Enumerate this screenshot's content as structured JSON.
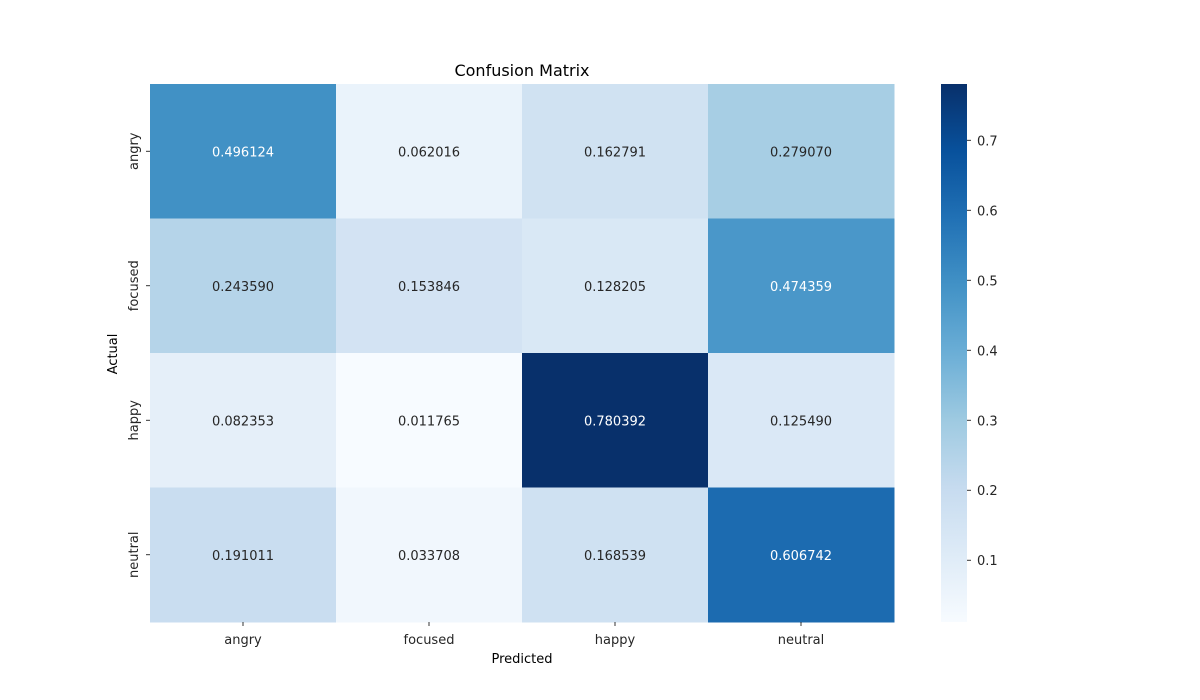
{
  "chart_data": {
    "type": "heatmap",
    "title": "Confusion Matrix",
    "xlabel": "Predicted",
    "ylabel": "Actual",
    "x_categories": [
      "angry",
      "focused",
      "happy",
      "neutral"
    ],
    "y_categories": [
      "angry",
      "focused",
      "happy",
      "neutral"
    ],
    "values": [
      [
        0.496124,
        0.062016,
        0.162791,
        0.27907
      ],
      [
        0.24359,
        0.153846,
        0.128205,
        0.474359
      ],
      [
        0.082353,
        0.011765,
        0.780392,
        0.12549
      ],
      [
        0.191011,
        0.033708,
        0.168539,
        0.606742
      ]
    ],
    "labels": [
      [
        "0.496124",
        "0.062016",
        "0.162791",
        "0.279070"
      ],
      [
        "0.243590",
        "0.153846",
        "0.128205",
        "0.474359"
      ],
      [
        "0.082353",
        "0.011765",
        "0.780392",
        "0.125490"
      ],
      [
        "0.191011",
        "0.033708",
        "0.168539",
        "0.606742"
      ]
    ],
    "colormap": "Blues",
    "colorbar": {
      "range": [
        0.011765,
        0.780392
      ],
      "ticks": [
        0.1,
        0.2,
        0.3,
        0.4,
        0.5,
        0.6,
        0.7
      ],
      "tick_labels": [
        "0.1",
        "0.2",
        "0.3",
        "0.4",
        "0.5",
        "0.6",
        "0.7"
      ]
    },
    "grid": false
  }
}
